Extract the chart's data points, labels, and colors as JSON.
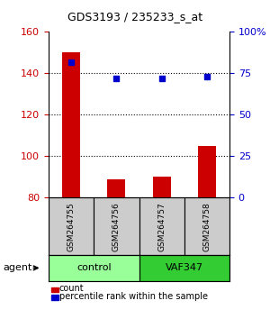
{
  "title": "GDS3193 / 235233_s_at",
  "samples": [
    "GSM264755",
    "GSM264756",
    "GSM264757",
    "GSM264758"
  ],
  "counts": [
    150,
    89,
    90,
    105
  ],
  "percentile_ranks": [
    82,
    72,
    72,
    73
  ],
  "ylim_left": [
    80,
    160
  ],
  "ylim_right": [
    0,
    100
  ],
  "yticks_left": [
    80,
    100,
    120,
    140,
    160
  ],
  "yticks_right": [
    0,
    25,
    50,
    75,
    100
  ],
  "ytick_labels_right": [
    "0",
    "25",
    "50",
    "75",
    "100%"
  ],
  "bar_color": "#cc0000",
  "dot_color": "#0000cc",
  "grid_yticks": [
    100,
    120,
    140
  ],
  "groups": [
    {
      "label": "control",
      "samples": [
        0,
        1
      ],
      "color": "#99ff99"
    },
    {
      "label": "VAF347",
      "samples": [
        2,
        3
      ],
      "color": "#33cc33"
    }
  ],
  "agent_label": "agent",
  "legend_count_label": "count",
  "legend_pct_label": "percentile rank within the sample",
  "bar_width": 0.4,
  "sample_box_color": "#cccccc",
  "background_color": "#ffffff"
}
